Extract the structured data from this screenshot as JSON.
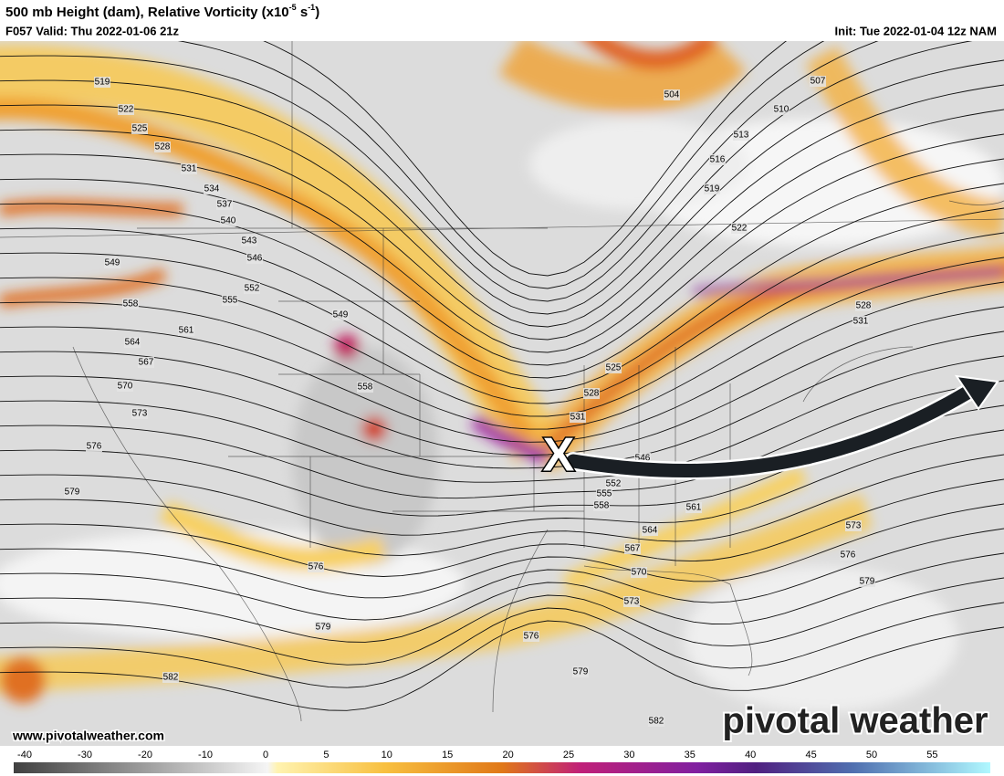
{
  "header": {
    "title_main": "500 mb Height (dam), Relative Vorticity (x10",
    "title_sup1": "-5",
    "title_mid": " s",
    "title_sup2": "-1",
    "title_end": ")",
    "valid": "F057 Valid: Thu 2022-01-06 21z",
    "init": "Init: Tue 2022-01-04 12z NAM"
  },
  "map": {
    "contour_labels": [
      519,
      522,
      525,
      528,
      531,
      534,
      537,
      540,
      543,
      546,
      549,
      552,
      555,
      549,
      558,
      561,
      564,
      567,
      570,
      573,
      576,
      579,
      558,
      504,
      507,
      510,
      513,
      516,
      519,
      522,
      528,
      531,
      525,
      528,
      531,
      546,
      552,
      555,
      558,
      561,
      564,
      567,
      570,
      573,
      576,
      579,
      582,
      573,
      576,
      579,
      576,
      579,
      582
    ],
    "marker": "X"
  },
  "footer": {
    "website": "www.pivotalweather.com",
    "logo": "pivotal weather"
  },
  "colorbar": {
    "ticks": [
      -40,
      -30,
      -20,
      -10,
      0,
      5,
      10,
      15,
      20,
      25,
      30,
      35,
      40,
      45,
      50,
      55
    ]
  }
}
